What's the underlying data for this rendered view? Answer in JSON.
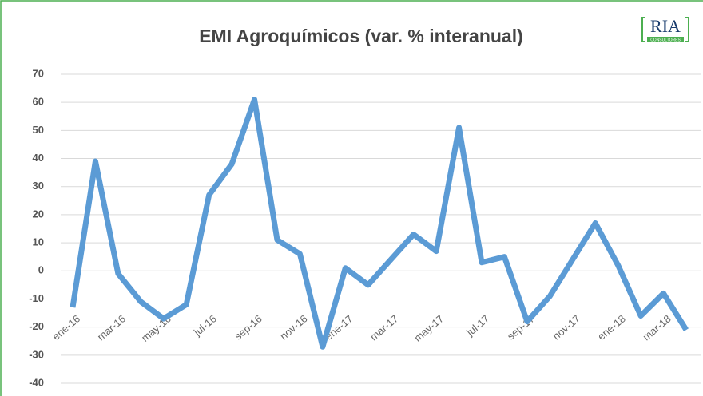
{
  "chart_data": {
    "type": "line",
    "title": "EMI Agroquímicos (var. % interanual)",
    "logo": {
      "name": "RIA",
      "tagline": "CONSULTORES"
    },
    "categories": [
      "ene-16",
      null,
      "mar-16",
      null,
      "may-16",
      null,
      "jul-16",
      null,
      "sep-16",
      null,
      "nov-16",
      null,
      "ene-17",
      null,
      "mar-17",
      null,
      "may-17",
      null,
      "jul-17",
      null,
      "sep-17",
      null,
      "nov-17",
      null,
      "ene-18",
      null,
      "mar-18",
      null
    ],
    "series": [
      {
        "name": "EMI Agroquímicos",
        "color": "#5b9bd5",
        "values": [
          -13,
          39,
          -1,
          -11,
          -17,
          -12,
          27,
          38,
          61,
          11,
          6,
          -27,
          1,
          -5,
          4,
          13,
          7,
          51,
          3,
          5,
          -18,
          -9,
          4,
          17,
          2,
          -16,
          -8,
          -21
        ]
      }
    ],
    "ylim": [
      -40,
      70
    ],
    "yticks": [
      -40,
      -30,
      -20,
      -10,
      0,
      10,
      20,
      30,
      40,
      50,
      60,
      70
    ],
    "grid": true
  }
}
